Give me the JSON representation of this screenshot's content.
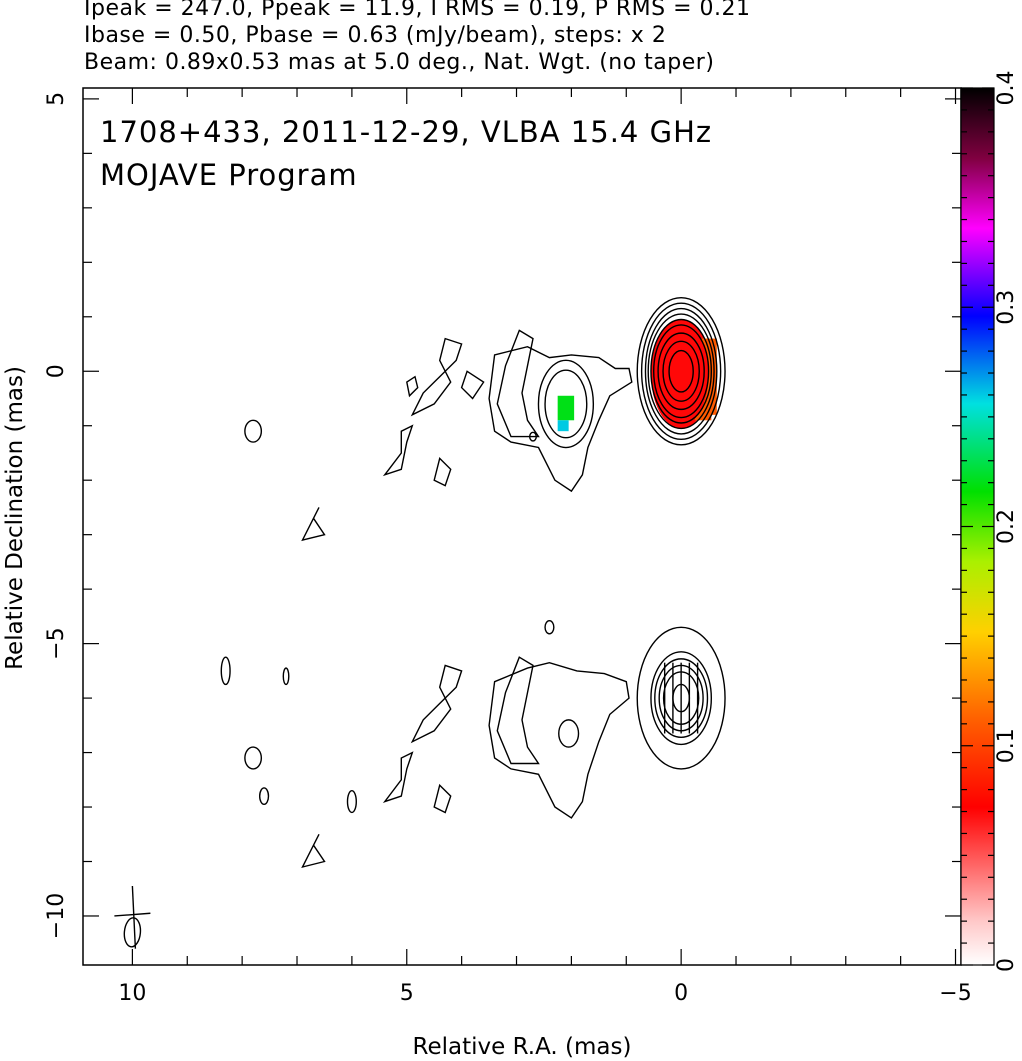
{
  "header": {
    "line1": "Ipeak = 247.0, Ppeak = 11.9, I RMS = 0.19, P RMS = 0.21",
    "line2": "Ibase = 0.50, Pbase = 0.63 (mJy/beam), steps: x 2",
    "line3": "Beam: 0.89x0.53 mas at 5.0 deg., Nat. Wgt. (no taper)"
  },
  "chart_data": {
    "type": "heatmap",
    "title": "1708+433, 2011-12-29, VLBA 15.4 GHz",
    "subtitle": "MOJAVE Program",
    "xlabel": "Relative R.A. (mas)",
    "ylabel": "Relative Declination (mas)",
    "xlim": [
      10.9,
      -5.1
    ],
    "ylim": [
      -10.9,
      5.2
    ],
    "x_ticks": [
      10,
      5,
      0,
      -5
    ],
    "x_tick_labels": [
      "10",
      "5",
      "0",
      "−5"
    ],
    "y_ticks": [
      5,
      0,
      -5,
      -10
    ],
    "y_tick_labels": [
      "5",
      "0",
      "−5",
      "−10"
    ],
    "colorbar": {
      "range": [
        0,
        0.4
      ],
      "ticks": [
        0,
        0.1,
        0.2,
        0.3,
        0.4
      ],
      "tick_labels": [
        "0",
        "0.1",
        "0.2",
        "0.3",
        "0.4"
      ]
    },
    "stokes_i_image": {
      "core": {
        "x": 0.0,
        "y": 0.0,
        "peak_mJy_per_beam": 247.0
      },
      "jet_component": {
        "x": 2.1,
        "y": -0.6
      },
      "contour_base_mJy_per_beam": 0.5,
      "contour_step_factor": 2
    },
    "fractional_polarization_patches": [
      {
        "x": 0.0,
        "y": 0.0,
        "value": 0.07
      },
      {
        "x": -0.4,
        "y": -0.5,
        "value": 0.11
      },
      {
        "x": 2.05,
        "y": -0.6,
        "value": 0.22
      },
      {
        "x": 2.1,
        "y": -0.95,
        "value": 0.26
      }
    ],
    "polarization_image": {
      "core": {
        "x": 0.0,
        "y": -6.0,
        "peak_mJy_per_beam": 11.9
      },
      "contour_base_mJy_per_beam": 0.63
    },
    "beam": {
      "major_mas": 0.89,
      "minor_mas": 0.53,
      "pa_deg": 5.0,
      "x": 10.0,
      "y": -10.3
    },
    "grid": false
  }
}
